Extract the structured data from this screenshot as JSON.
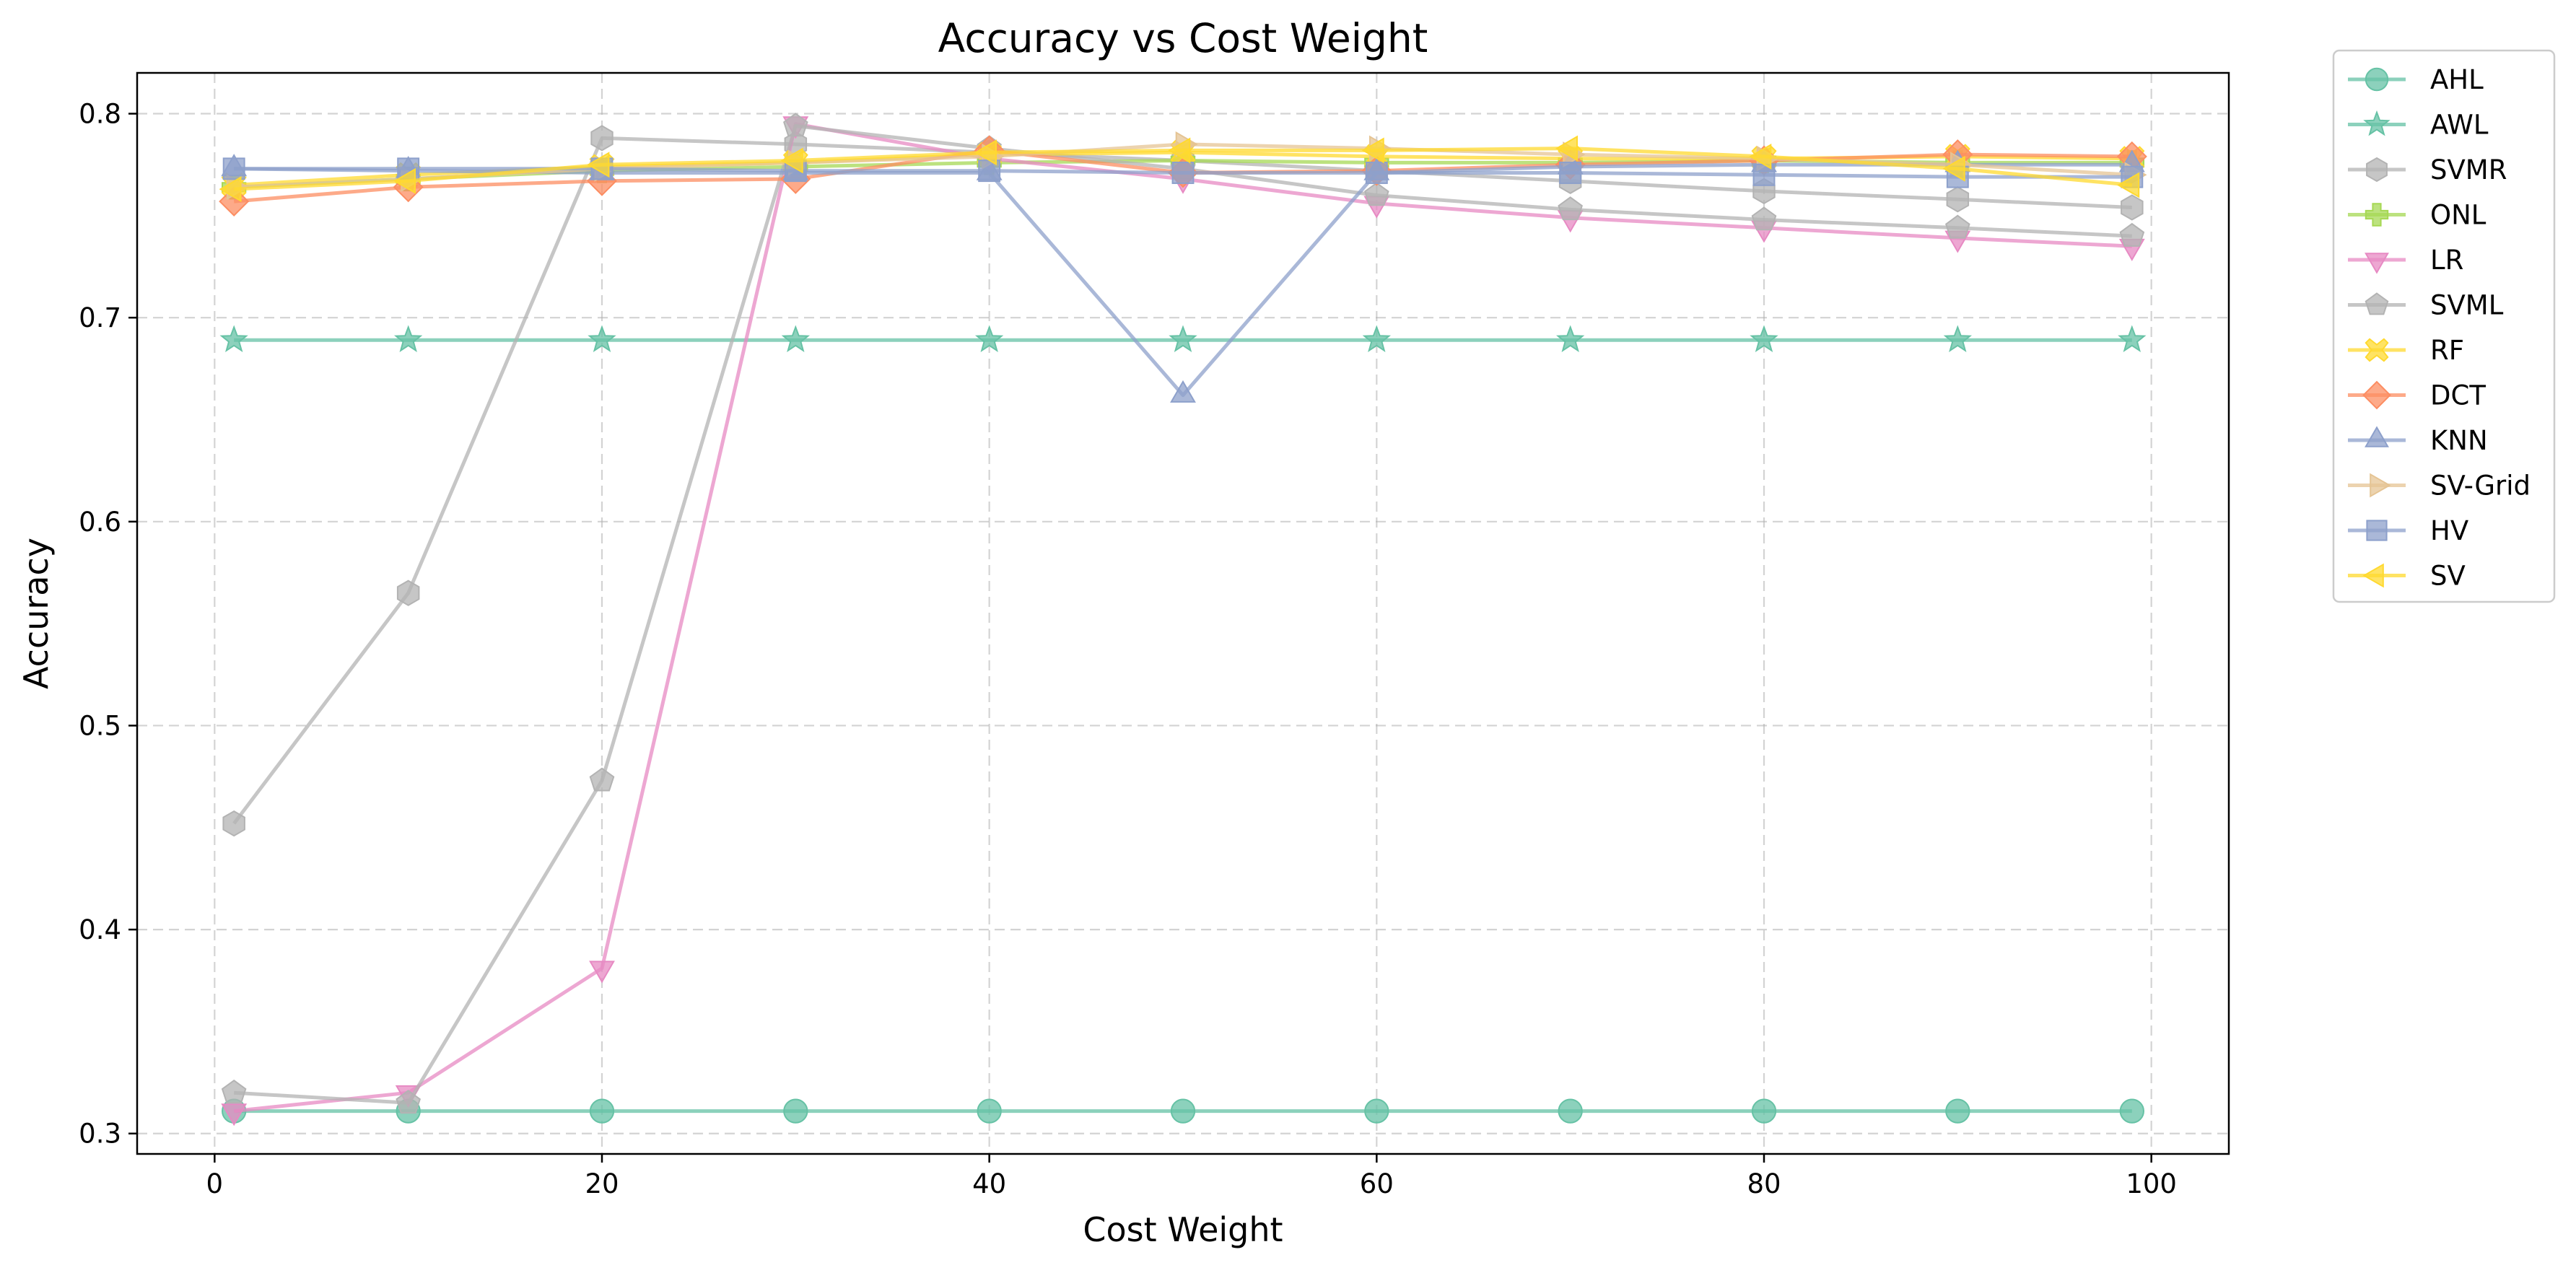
{
  "chart_data": {
    "type": "line",
    "title": "Accuracy vs Cost Weight",
    "xlabel": "Cost Weight",
    "ylabel": "Accuracy",
    "xlim": [
      -4,
      104
    ],
    "ylim": [
      0.29,
      0.82
    ],
    "xticks": [
      0,
      20,
      40,
      60,
      80,
      100
    ],
    "yticks": [
      0.3,
      0.4,
      0.5,
      0.6,
      0.7,
      0.8
    ],
    "grid": true,
    "legend_position": "outside-right",
    "x": [
      1,
      10,
      20,
      30,
      40,
      50,
      60,
      70,
      80,
      90,
      99
    ],
    "series": [
      {
        "name": "AHL",
        "color": "#66c2a5",
        "marker": "circle",
        "values": [
          0.311,
          0.311,
          0.311,
          0.311,
          0.311,
          0.311,
          0.311,
          0.311,
          0.311,
          0.311,
          0.311
        ]
      },
      {
        "name": "AWL",
        "color": "#66c2a5",
        "marker": "star",
        "values": [
          0.689,
          0.689,
          0.689,
          0.689,
          0.689,
          0.689,
          0.689,
          0.689,
          0.689,
          0.689,
          0.689
        ]
      },
      {
        "name": "SVMR",
        "color": "#b3b3b3",
        "marker": "hexagon",
        "values": [
          0.452,
          0.565,
          0.788,
          0.785,
          0.781,
          0.777,
          0.772,
          0.767,
          0.762,
          0.758,
          0.754
        ]
      },
      {
        "name": "ONL",
        "color": "#a6d854",
        "marker": "plus",
        "values": [
          0.764,
          0.768,
          0.772,
          0.774,
          0.776,
          0.777,
          0.776,
          0.776,
          0.777,
          0.776,
          0.776
        ]
      },
      {
        "name": "LR",
        "color": "#e78ac3",
        "marker": "triangle-down",
        "values": [
          0.311,
          0.32,
          0.381,
          0.795,
          0.778,
          0.768,
          0.756,
          0.749,
          0.744,
          0.739,
          0.735
        ]
      },
      {
        "name": "SVML",
        "color": "#b3b3b3",
        "marker": "pentagon",
        "values": [
          0.32,
          0.315,
          0.473,
          0.794,
          0.783,
          0.773,
          0.76,
          0.753,
          0.748,
          0.744,
          0.74
        ]
      },
      {
        "name": "RF",
        "color": "#ffd92f",
        "marker": "x",
        "values": [
          0.765,
          0.77,
          0.774,
          0.776,
          0.78,
          0.781,
          0.779,
          0.778,
          0.778,
          0.779,
          0.778
        ]
      },
      {
        "name": "DCT",
        "color": "#fc8d62",
        "marker": "diamond",
        "values": [
          0.757,
          0.764,
          0.767,
          0.768,
          0.782,
          0.771,
          0.772,
          0.775,
          0.777,
          0.78,
          0.779
        ]
      },
      {
        "name": "KNN",
        "color": "#8da0cb",
        "marker": "triangle-up",
        "values": [
          0.773,
          0.772,
          0.771,
          0.771,
          0.771,
          0.662,
          0.771,
          0.774,
          0.775,
          0.775,
          0.775
        ]
      },
      {
        "name": "SV-Grid",
        "color": "#e5c494",
        "marker": "triangle-right",
        "values": [
          0.764,
          0.768,
          0.773,
          0.776,
          0.779,
          0.785,
          0.783,
          0.78,
          0.778,
          0.775,
          0.77
        ]
      },
      {
        "name": "HV",
        "color": "#8da0cb",
        "marker": "square",
        "values": [
          0.773,
          0.773,
          0.773,
          0.772,
          0.772,
          0.771,
          0.771,
          0.771,
          0.77,
          0.769,
          0.769
        ]
      },
      {
        "name": "SV",
        "color": "#ffd92f",
        "marker": "triangle-left",
        "values": [
          0.763,
          0.767,
          0.775,
          0.777,
          0.781,
          0.782,
          0.782,
          0.783,
          0.779,
          0.773,
          0.765
        ]
      }
    ]
  }
}
